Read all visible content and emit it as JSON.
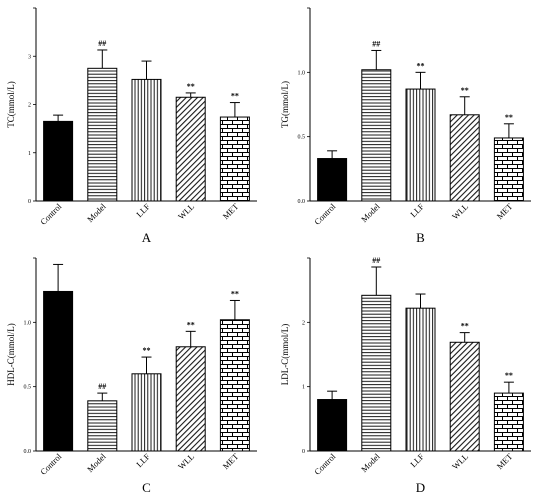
{
  "chart_data": [
    {
      "type": "bar",
      "caption": "A",
      "ylabel": "TC(mmol/L)",
      "ylim": [
        0,
        4
      ],
      "yticks": [
        0,
        1,
        2,
        3
      ],
      "categories": [
        "Control",
        "Model",
        "LLF",
        "WLL",
        "MET"
      ],
      "values": [
        1.65,
        2.75,
        2.52,
        2.15,
        1.74
      ],
      "errors": [
        0.13,
        0.38,
        0.38,
        0.09,
        0.3
      ],
      "annotations": [
        "",
        "##",
        "",
        "**",
        "**"
      ]
    },
    {
      "type": "bar",
      "caption": "B",
      "ylabel": "TG(mmol/L)",
      "ylim": [
        0,
        1.5
      ],
      "yticks": [
        0.0,
        0.5,
        1.0
      ],
      "yticklabels": [
        "0.0",
        "0.5",
        "1.0"
      ],
      "categories": [
        "Control",
        "Model",
        "LLF",
        "WLL",
        "MET"
      ],
      "values": [
        0.33,
        1.02,
        0.87,
        0.67,
        0.49
      ],
      "errors": [
        0.06,
        0.15,
        0.13,
        0.14,
        0.11
      ],
      "annotations": [
        "",
        "##",
        "**",
        "**",
        "**"
      ]
    },
    {
      "type": "bar",
      "caption": "C",
      "ylabel": "HDL-C(mmol/L)",
      "ylim": [
        0,
        1.5
      ],
      "yticks": [
        0.0,
        0.5,
        1.0
      ],
      "yticklabels": [
        "0.0",
        "0.5",
        "1.0"
      ],
      "categories": [
        "Control",
        "Model",
        "LLF",
        "WLL",
        "MET"
      ],
      "values": [
        1.24,
        0.39,
        0.6,
        0.81,
        1.02
      ],
      "errors": [
        0.21,
        0.06,
        0.13,
        0.12,
        0.15
      ],
      "annotations": [
        "",
        "##",
        "**",
        "**",
        "**"
      ]
    },
    {
      "type": "bar",
      "caption": "D",
      "ylabel": "LDL-C(mmol/L)",
      "ylim": [
        0,
        3
      ],
      "yticks": [
        0,
        1,
        2
      ],
      "categories": [
        "Control",
        "Model",
        "LLF",
        "WLL",
        "MET"
      ],
      "values": [
        0.8,
        2.42,
        2.22,
        1.69,
        0.9
      ],
      "errors": [
        0.13,
        0.44,
        0.22,
        0.15,
        0.17
      ],
      "annotations": [
        "",
        "##",
        "",
        "**",
        "**"
      ]
    }
  ],
  "patterns": [
    "solid-black",
    "horizontal-lines",
    "vertical-lines",
    "diagonal-lines",
    "brick"
  ]
}
